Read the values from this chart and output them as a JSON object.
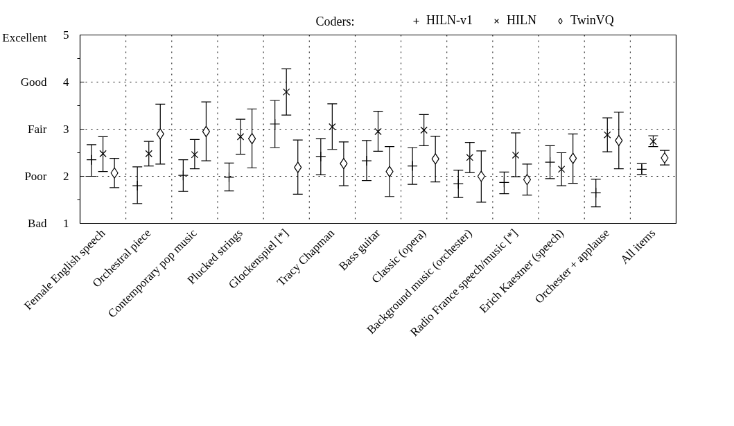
{
  "chart_data": {
    "type": "scatter",
    "categories": [
      "Female English speech",
      "Orchestral piece",
      "Contemporary pop music",
      "Plucked strings",
      "Glockenspiel [*]",
      "Tracy Chapman",
      "Bass guitar",
      "Classic (opera)",
      "Background music (orchester)",
      "Radio France speech/music [*]",
      "Erich Kaestner (speech)",
      "Orchester + applause",
      "All items"
    ],
    "legend_title": "Coders:",
    "series": [
      {
        "name": "HILN-v1",
        "color": "#000000",
        "marker": "cross",
        "values": [
          2.35,
          1.8,
          2.02,
          1.98,
          3.11,
          2.42,
          2.33,
          2.22,
          1.84,
          1.87,
          2.3,
          1.65,
          2.15
        ],
        "errors": [
          [
            2.0,
            2.67
          ],
          [
            1.42,
            2.2
          ],
          [
            1.68,
            2.35
          ],
          [
            1.69,
            2.28
          ],
          [
            2.61,
            3.61
          ],
          [
            2.03,
            2.8
          ],
          [
            1.91,
            2.76
          ],
          [
            1.83,
            2.61
          ],
          [
            1.55,
            2.13
          ],
          [
            1.63,
            2.09
          ],
          [
            1.95,
            2.65
          ],
          [
            1.35,
            1.94
          ],
          [
            2.04,
            2.27
          ]
        ]
      },
      {
        "name": "HILN",
        "color": "#000000",
        "marker": "x",
        "values": [
          2.48,
          2.48,
          2.46,
          2.84,
          3.79,
          3.05,
          2.95,
          2.98,
          2.4,
          2.45,
          2.15,
          2.88,
          2.74
        ],
        "errors": [
          [
            2.1,
            2.84
          ],
          [
            2.22,
            2.74
          ],
          [
            2.16,
            2.78
          ],
          [
            2.47,
            3.21
          ],
          [
            3.3,
            4.28
          ],
          [
            2.57,
            3.54
          ],
          [
            2.53,
            3.38
          ],
          [
            2.65,
            3.31
          ],
          [
            2.08,
            2.72
          ],
          [
            1.99,
            2.92
          ],
          [
            1.8,
            2.5
          ],
          [
            2.52,
            3.24
          ],
          [
            2.63,
            2.86
          ]
        ]
      },
      {
        "name": "TwinVQ",
        "color": "#000000",
        "marker": "diamond",
        "values": [
          2.07,
          2.9,
          2.95,
          2.8,
          2.19,
          2.27,
          2.1,
          2.37,
          2.0,
          1.93,
          2.38,
          2.76,
          2.39
        ],
        "errors": [
          [
            1.76,
            2.38
          ],
          [
            2.26,
            3.53
          ],
          [
            2.33,
            3.58
          ],
          [
            2.18,
            3.43
          ],
          [
            1.62,
            2.77
          ],
          [
            1.8,
            2.73
          ],
          [
            1.57,
            2.63
          ],
          [
            1.88,
            2.85
          ],
          [
            1.45,
            2.54
          ],
          [
            1.6,
            2.26
          ],
          [
            1.85,
            2.9
          ],
          [
            2.16,
            3.36
          ],
          [
            2.24,
            2.55
          ]
        ]
      }
    ],
    "ylim": [
      1,
      5
    ],
    "yticks": [
      1,
      2,
      3,
      4,
      5
    ],
    "annotations": [
      "Bad",
      "Poor",
      "Fair",
      "Good",
      "Excellent"
    ],
    "grid": true,
    "legend": "top"
  }
}
